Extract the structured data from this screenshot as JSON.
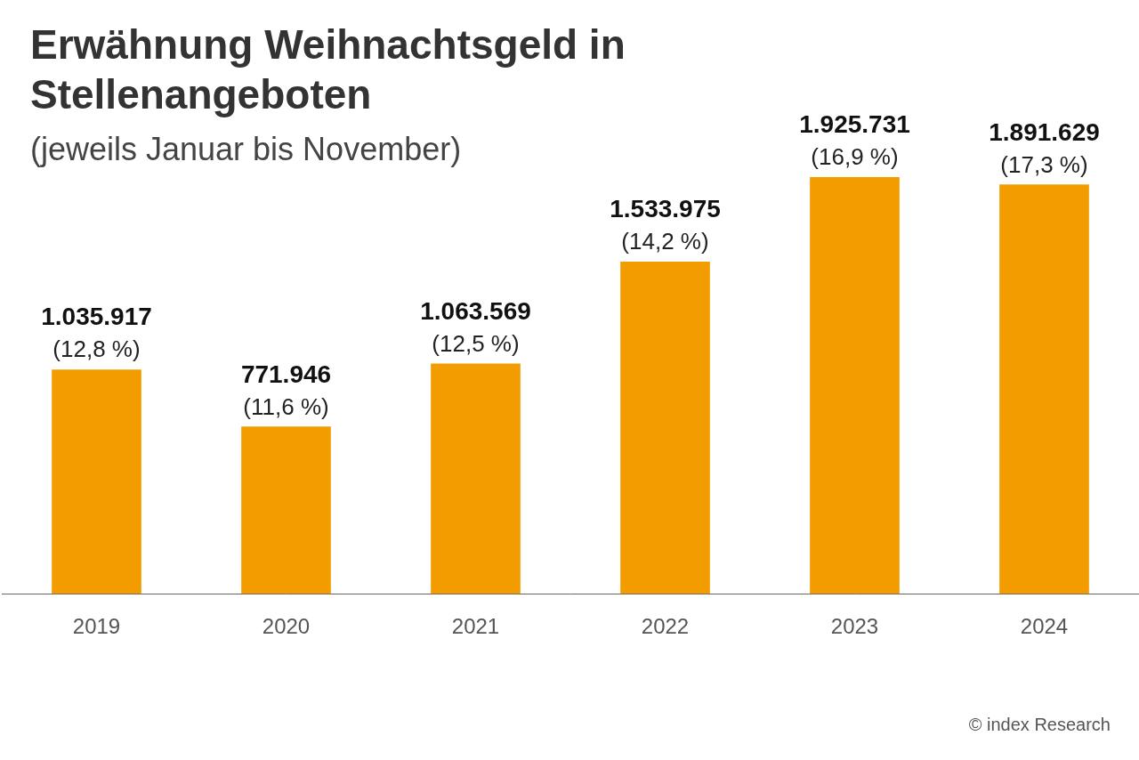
{
  "chart_data": {
    "type": "bar",
    "title": "Erwähnung Weihnachtsgeld in Stellenangeboten",
    "subtitle": "(jeweils Januar bis November)",
    "categories": [
      "2019",
      "2020",
      "2021",
      "2022",
      "2023",
      "2024"
    ],
    "values": [
      1035917,
      771946,
      1063569,
      1533975,
      1925731,
      1891629
    ],
    "value_labels": [
      "1.035.917",
      "771.946",
      "1.063.569",
      "1.533.975",
      "1.925.731",
      "1.891.629"
    ],
    "shares": [
      12.8,
      11.6,
      12.5,
      14.2,
      16.9,
      17.3
    ],
    "share_labels": [
      "(12,8 %)",
      "(11,6 %)",
      "(12,5 %)",
      "(14,2 %)",
      "(16,9 %)",
      "(17,3 %)"
    ],
    "color": "#f39c00",
    "ylim": [
      0,
      2400000
    ],
    "yticks": [],
    "grid": false,
    "data_labels": true,
    "tick_labels": "x",
    "source": "© index Research"
  }
}
